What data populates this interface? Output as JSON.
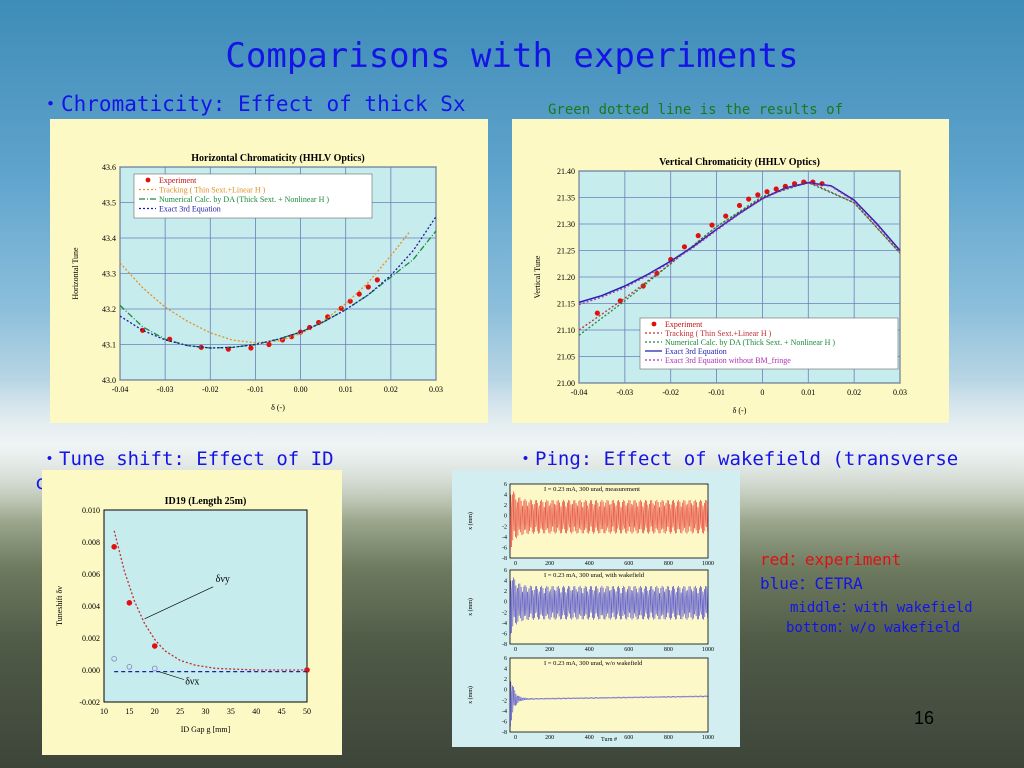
{
  "slide": {
    "title": "Comparisons with experiments",
    "bullet_chromaticity": "・Chromaticity: Effect of thick Sx",
    "note_green": "Green dotted line is the results of",
    "bullet_tune": "・Tune shift: Effect of ID",
    "bullet_tune_cont": "c",
    "bullet_ping": "・Ping: Effect of wakefield (transverse",
    "legend_red": "red：experiment",
    "legend_blue": "blue：CETRA",
    "legend_middle": "middle：with wakefield",
    "legend_bottom": "bottom：w/o wakefield",
    "page_number": "16"
  },
  "colors": {
    "title": "#1414e6",
    "note": "#1a7a1a",
    "red": "#e01010",
    "plot_bg": "#c7ecee",
    "panel_bg": "#fdf9c4"
  },
  "chart_data": [
    {
      "type": "line",
      "title": "Horizontal Chromaticity (HHLV Optics)",
      "xlabel": "δ (-)",
      "ylabel": "Horizontal Tune",
      "xlim": [
        -0.04,
        0.03
      ],
      "ylim": [
        43.0,
        43.6
      ],
      "x_ticks": [
        "-0.04",
        "-0.03",
        "-0.02",
        "-0.01",
        "0.00",
        "0.01",
        "0.02",
        "0.03"
      ],
      "y_ticks": [
        "43.0",
        "43.1",
        "43.2",
        "43.3",
        "43.4",
        "43.5",
        "43.6"
      ],
      "grid": true,
      "legend_position": "top-left",
      "series": [
        {
          "name": "Experiment",
          "style": "markers",
          "color": "#e01010",
          "x": [
            -0.035,
            -0.029,
            -0.022,
            -0.016,
            -0.011,
            -0.007,
            -0.004,
            -0.002,
            0.0,
            0.002,
            0.004,
            0.006,
            0.009,
            0.011,
            0.013,
            0.015,
            0.017
          ],
          "y": [
            43.14,
            43.115,
            43.092,
            43.087,
            43.09,
            43.1,
            43.113,
            43.122,
            43.135,
            43.148,
            43.162,
            43.178,
            43.202,
            43.222,
            43.242,
            43.262,
            43.282
          ]
        },
        {
          "name": "Tracking ( Thin Sext.+Linear H )",
          "style": "dotted",
          "color": "#e69020",
          "x": [
            -0.04,
            -0.035,
            -0.03,
            -0.025,
            -0.02,
            -0.015,
            -0.01,
            -0.005,
            0.0,
            0.005,
            0.01,
            0.015,
            0.02,
            0.024
          ],
          "y": [
            43.33,
            43.26,
            43.205,
            43.165,
            43.133,
            43.112,
            43.105,
            43.11,
            43.13,
            43.165,
            43.215,
            43.275,
            43.35,
            43.415
          ]
        },
        {
          "name": "Numerical Calc. by DA (Thick Sext. + Nonlinear H )",
          "style": "dashdot",
          "color": "#1a8a3a",
          "x": [
            -0.04,
            -0.035,
            -0.03,
            -0.025,
            -0.02,
            -0.015,
            -0.01,
            -0.005,
            0.0,
            0.005,
            0.01,
            0.015,
            0.02,
            0.025,
            0.03
          ],
          "y": [
            43.21,
            43.15,
            43.115,
            43.097,
            43.09,
            43.092,
            43.1,
            43.115,
            43.135,
            43.163,
            43.198,
            43.24,
            43.29,
            43.34,
            43.42
          ]
        },
        {
          "name": "Exact 3rd Equation",
          "style": "dotted",
          "color": "#1a1aa0",
          "x": [
            -0.04,
            -0.035,
            -0.03,
            -0.025,
            -0.02,
            -0.015,
            -0.01,
            -0.005,
            0.0,
            0.005,
            0.01,
            0.015,
            0.02,
            0.025,
            0.03
          ],
          "y": [
            43.18,
            43.14,
            43.113,
            43.097,
            43.09,
            43.092,
            43.1,
            43.115,
            43.135,
            43.163,
            43.198,
            43.24,
            43.295,
            43.365,
            43.46
          ]
        }
      ]
    },
    {
      "type": "line",
      "title": "Vertical Chromaticity (HHLV Optics)",
      "xlabel": "δ (-)",
      "ylabel": "Vertical Tune",
      "xlim": [
        -0.04,
        0.03
      ],
      "ylim": [
        21.0,
        21.4
      ],
      "x_ticks": [
        "-0.04",
        "-0.03",
        "-0.02",
        "-0.01",
        "0",
        "0.01",
        "0.02",
        "0.03"
      ],
      "y_ticks": [
        "21.00",
        "21.05",
        "21.10",
        "21.15",
        "21.20",
        "21.25",
        "21.30",
        "21.35",
        "21.40"
      ],
      "grid": true,
      "legend_position": "bottom-right",
      "series": [
        {
          "name": "Experiment",
          "style": "markers",
          "color": "#e01010",
          "x": [
            -0.036,
            -0.031,
            -0.026,
            -0.023,
            -0.02,
            -0.017,
            -0.014,
            -0.011,
            -0.008,
            -0.005,
            -0.003,
            -0.001,
            0.001,
            0.003,
            0.005,
            0.007,
            0.009,
            0.011,
            0.013
          ],
          "y": [
            21.132,
            21.155,
            21.183,
            21.207,
            21.233,
            21.257,
            21.278,
            21.298,
            21.315,
            21.335,
            21.347,
            21.355,
            21.361,
            21.366,
            21.371,
            21.376,
            21.379,
            21.379,
            21.376
          ]
        },
        {
          "name": "Tracking ( Thin Sext.+Linear H )",
          "style": "dotted",
          "color": "#c03030",
          "x": [
            -0.04,
            -0.03,
            -0.02,
            -0.01,
            0.0,
            0.01,
            0.02,
            0.03
          ],
          "y": [
            21.1,
            21.16,
            21.225,
            21.295,
            21.35,
            21.38,
            21.34,
            21.245
          ]
        },
        {
          "name": "Numerical Calc. by DA (Thick Sext. + Nonlinear H )",
          "style": "dotted",
          "color": "#1a8a3a",
          "x": [
            -0.04,
            -0.03,
            -0.02,
            -0.01,
            0.0,
            0.01,
            0.02,
            0.03
          ],
          "y": [
            21.09,
            21.155,
            21.225,
            21.295,
            21.352,
            21.378,
            21.34,
            21.245
          ]
        },
        {
          "name": "Exact 3rd Equation",
          "style": "solid",
          "color": "#2020b0",
          "x": [
            -0.04,
            -0.035,
            -0.03,
            -0.025,
            -0.02,
            -0.015,
            -0.01,
            -0.005,
            0.0,
            0.005,
            0.01,
            0.015,
            0.02,
            0.025,
            0.03
          ],
          "y": [
            21.152,
            21.165,
            21.183,
            21.205,
            21.23,
            21.258,
            21.29,
            21.32,
            21.348,
            21.368,
            21.378,
            21.372,
            21.345,
            21.3,
            21.25
          ]
        },
        {
          "name": "Exact 3rd Equation without BM_fringe",
          "style": "dotted",
          "color": "#b030b0",
          "x": [
            -0.04,
            -0.035,
            -0.03,
            -0.025,
            -0.02,
            -0.015,
            -0.01,
            -0.005,
            0.0,
            0.005,
            0.01,
            0.015,
            0.02,
            0.025,
            0.03
          ],
          "y": [
            21.148,
            21.162,
            21.18,
            21.203,
            21.228,
            21.256,
            21.288,
            21.319,
            21.347,
            21.367,
            21.377,
            21.371,
            21.343,
            21.298,
            21.248
          ]
        }
      ]
    },
    {
      "type": "scatter",
      "title": "ID19 (Length 25m)",
      "xlabel": "ID Gap g [mm]",
      "ylabel": "Tuneshift δν",
      "xlim": [
        10,
        50
      ],
      "ylim": [
        -0.002,
        0.01
      ],
      "x_ticks": [
        "10",
        "15",
        "20",
        "25",
        "30",
        "35",
        "40",
        "45",
        "50"
      ],
      "y_ticks": [
        "-0.002",
        "0.000",
        "0.002",
        "0.004",
        "0.006",
        "0.008",
        "0.010"
      ],
      "grid": false,
      "annotations": [
        "δνy",
        "δνx"
      ],
      "series": [
        {
          "role": "δνy experiment",
          "style": "markers",
          "color": "#e01010",
          "x": [
            12,
            15,
            20,
            50
          ],
          "y": [
            0.0077,
            0.0042,
            0.0015,
            0.0
          ]
        },
        {
          "role": "δνy calculation",
          "style": "dotted",
          "color": "#c03030",
          "x": [
            12,
            14,
            16,
            18,
            20,
            22,
            25,
            28,
            32,
            36,
            40,
            45,
            50
          ],
          "y": [
            0.0087,
            0.0062,
            0.0043,
            0.0029,
            0.0019,
            0.0012,
            0.0006,
            0.0003,
            0.0001,
            5e-05,
            0.0,
            0.0,
            0.0
          ]
        },
        {
          "role": "δνx experiment",
          "style": "open-markers",
          "color": "#8080c0",
          "x": [
            12,
            15,
            20
          ],
          "y": [
            0.0007,
            0.0002,
            0.0001
          ]
        },
        {
          "role": "δνx calculation",
          "style": "dashed",
          "color": "#2020a0",
          "x": [
            12,
            50
          ],
          "y": [
            -0.0001,
            -0.0001
          ]
        }
      ]
    },
    {
      "type": "line",
      "panels": [
        {
          "label": "I = 0.23 mA, 300 urad, measurement",
          "color": "#e01010"
        },
        {
          "label": "I = 0.23 mA, 300 urad, with wakefield",
          "color": "#1a1ad0"
        },
        {
          "label": "I = 0.23 mA, 300 urad, w/o wakefield",
          "color": "#1a1ad0"
        }
      ],
      "ylabel": "x (mm)",
      "xlabel": "Turn #",
      "xlim": [
        0,
        1000
      ],
      "ylim": [
        -8,
        6
      ],
      "x_ticks": [
        "0",
        "200",
        "400",
        "600",
        "800",
        "1000"
      ],
      "y_ticks": [
        "6",
        "4",
        "2",
        "0",
        "-2",
        "-4",
        "-6",
        "-8"
      ]
    }
  ]
}
